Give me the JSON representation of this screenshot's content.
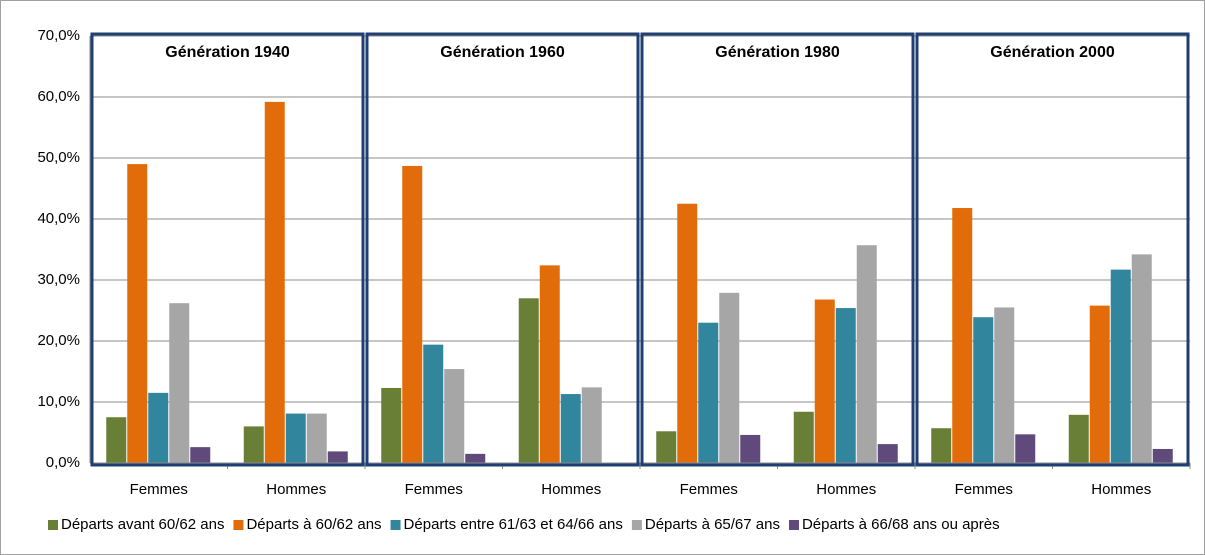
{
  "chart_data": {
    "type": "bar",
    "panels": [
      "Génération 1940",
      "Génération 1960",
      "Génération 1980",
      "Génération 2000"
    ],
    "categories": [
      "Femmes",
      "Hommes",
      "Femmes",
      "Hommes",
      "Femmes",
      "Hommes",
      "Femmes",
      "Hommes"
    ],
    "series": [
      {
        "name": "Départs avant 60/62 ans",
        "color": "#6a7f36",
        "values": [
          7.5,
          6.0,
          12.3,
          27.0,
          5.2,
          8.4,
          5.7,
          7.9
        ]
      },
      {
        "name": "Départs à 60/62 ans",
        "color": "#e36c0a",
        "values": [
          49.0,
          59.2,
          48.7,
          32.4,
          42.5,
          26.8,
          41.8,
          25.8
        ]
      },
      {
        "name": "Départs entre 61/63 et 64/66 ans",
        "color": "#31859c",
        "values": [
          11.5,
          8.1,
          19.4,
          11.3,
          23.0,
          25.4,
          23.9,
          31.7
        ]
      },
      {
        "name": "Départs à 65/67 ans",
        "color": "#a6a6a6",
        "values": [
          26.2,
          8.1,
          15.4,
          12.4,
          27.9,
          35.7,
          25.5,
          34.2
        ]
      },
      {
        "name": "Départs à 66/68 ans ou après",
        "color": "#604a7b",
        "values": [
          2.6,
          1.9,
          1.5,
          null,
          4.6,
          3.1,
          4.7,
          2.3
        ]
      }
    ],
    "ylim": [
      0,
      70
    ],
    "yticks": [
      {
        "value": 0,
        "label": "0,0%"
      },
      {
        "value": 10,
        "label": "10,0%"
      },
      {
        "value": 20,
        "label": "20,0%"
      },
      {
        "value": 30,
        "label": "30,0%"
      },
      {
        "value": 40,
        "label": "40,0%"
      },
      {
        "value": 50,
        "label": "50,0%"
      },
      {
        "value": 60,
        "label": "60,0%"
      },
      {
        "value": 70,
        "label": "70,0%"
      }
    ],
    "grid": true,
    "legend": "bottom"
  }
}
